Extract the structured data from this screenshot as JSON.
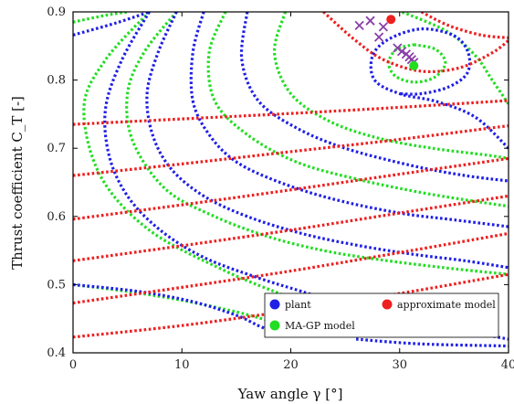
{
  "chart_data": {
    "type": "line",
    "title": "",
    "xlabel": "Yaw angle γ [°]",
    "ylabel": "Thrust coefficient C_T [-]",
    "xlim": [
      0,
      40
    ],
    "ylim": [
      0.4,
      0.9
    ],
    "xticks": [
      0,
      10,
      20,
      30,
      40
    ],
    "yticks": [
      0.4,
      0.5,
      0.6,
      0.7,
      0.8,
      0.9
    ],
    "grid": false,
    "legend_position": "bottom-right",
    "colors": {
      "plant": "#1f1fe6",
      "approximate": "#ee1f1f",
      "magp": "#22dd22",
      "iterates": "#8a3fa8"
    },
    "legend": [
      {
        "label": "plant",
        "color": "#1f1fe6"
      },
      {
        "label": "approximate model",
        "color": "#ee1f1f"
      },
      {
        "label": "MA-GP model",
        "color": "#22dd22"
      }
    ],
    "optima": {
      "approximate": {
        "x": 29.2,
        "y": 0.889
      },
      "magp": {
        "x": 31.3,
        "y": 0.821
      }
    },
    "iterates": [
      {
        "x": 26.3,
        "y": 0.88
      },
      {
        "x": 27.3,
        "y": 0.887
      },
      {
        "x": 28.5,
        "y": 0.878
      },
      {
        "x": 28.1,
        "y": 0.863
      },
      {
        "x": 29.8,
        "y": 0.847
      },
      {
        "x": 30.2,
        "y": 0.842
      },
      {
        "x": 30.6,
        "y": 0.838
      },
      {
        "x": 30.9,
        "y": 0.834
      },
      {
        "x": 31.1,
        "y": 0.83
      },
      {
        "x": 31.3,
        "y": 0.826
      }
    ],
    "series": [
      {
        "name": "plant",
        "color": "#1f1fe6",
        "lines": [
          [
            [
              0,
              0.866
            ],
            [
              4,
              0.884
            ],
            [
              7,
              0.9
            ]
          ],
          [
            [
              7,
              0.9
            ],
            [
              4.5,
              0.83
            ],
            [
              3,
              0.76
            ],
            [
              3.3,
              0.69
            ],
            [
              5,
              0.63
            ],
            [
              8,
              0.58
            ],
            [
              12,
              0.54
            ],
            [
              17,
              0.51
            ],
            [
              21,
              0.49
            ],
            [
              26,
              0.465
            ],
            [
              31,
              0.447
            ],
            [
              36,
              0.432
            ],
            [
              40,
              0.42
            ]
          ],
          [
            [
              9.5,
              0.9
            ],
            [
              7.8,
              0.84
            ],
            [
              6.8,
              0.78
            ],
            [
              7.3,
              0.72
            ],
            [
              9,
              0.67
            ],
            [
              12,
              0.63
            ],
            [
              16,
              0.6
            ],
            [
              21,
              0.575
            ],
            [
              26,
              0.558
            ],
            [
              31,
              0.545
            ],
            [
              36,
              0.535
            ],
            [
              40,
              0.525
            ]
          ],
          [
            [
              12,
              0.9
            ],
            [
              11,
              0.84
            ],
            [
              11,
              0.77
            ],
            [
              12.5,
              0.72
            ],
            [
              15,
              0.68
            ],
            [
              19,
              0.65
            ],
            [
              24,
              0.625
            ],
            [
              30,
              0.605
            ],
            [
              35,
              0.595
            ],
            [
              40,
              0.585
            ]
          ],
          [
            [
              16,
              0.9
            ],
            [
              15.5,
              0.83
            ],
            [
              17,
              0.77
            ],
            [
              20.5,
              0.73
            ],
            [
              25,
              0.7
            ],
            [
              31,
              0.675
            ],
            [
              36,
              0.66
            ],
            [
              40,
              0.652
            ]
          ],
          [
            [
              40,
              0.7
            ],
            [
              37,
              0.745
            ],
            [
              33.5,
              0.768
            ],
            [
              30,
              0.78
            ],
            [
              27.7,
              0.8
            ],
            [
              27.5,
              0.835
            ],
            [
              29,
              0.86
            ],
            [
              32,
              0.875
            ],
            [
              35,
              0.865
            ],
            [
              36.3,
              0.84
            ],
            [
              36.2,
              0.81
            ],
            [
              34.5,
              0.79
            ],
            [
              32,
              0.78
            ],
            [
              30,
              0.78
            ]
          ],
          [
            [
              0,
              0.5
            ],
            [
              6,
              0.49
            ],
            [
              11,
              0.475
            ],
            [
              15,
              0.455
            ],
            [
              17,
              0.44
            ],
            [
              18.5,
              0.43
            ]
          ],
          [
            [
              26,
              0.42
            ],
            [
              32,
              0.413
            ],
            [
              40,
              0.41
            ]
          ]
        ]
      },
      {
        "name": "approximate model",
        "color": "#ee1f1f",
        "lines": [
          [
            [
              0,
              0.735
            ],
            [
              10,
              0.743
            ],
            [
              20,
              0.751
            ],
            [
              30,
              0.76
            ],
            [
              40,
              0.77
            ]
          ],
          [
            [
              0,
              0.66
            ],
            [
              10,
              0.677
            ],
            [
              20,
              0.695
            ],
            [
              30,
              0.713
            ],
            [
              40,
              0.733
            ]
          ],
          [
            [
              0,
              0.596
            ],
            [
              10,
              0.617
            ],
            [
              20,
              0.639
            ],
            [
              30,
              0.662
            ],
            [
              40,
              0.685
            ]
          ],
          [
            [
              0,
              0.535
            ],
            [
              10,
              0.557
            ],
            [
              20,
              0.58
            ],
            [
              30,
              0.605
            ],
            [
              40,
              0.63
            ]
          ],
          [
            [
              0,
              0.473
            ],
            [
              10,
              0.496
            ],
            [
              20,
              0.52
            ],
            [
              30,
              0.547
            ],
            [
              40,
              0.575
            ]
          ],
          [
            [
              0,
              0.423
            ],
            [
              10,
              0.44
            ],
            [
              20,
              0.462
            ],
            [
              30,
              0.487
            ],
            [
              40,
              0.515
            ]
          ],
          [
            [
              23,
              0.9
            ],
            [
              25.8,
              0.86
            ],
            [
              28.5,
              0.83
            ],
            [
              32,
              0.813
            ],
            [
              35.5,
              0.818
            ],
            [
              38.5,
              0.84
            ],
            [
              40,
              0.858
            ]
          ],
          [
            [
              32,
              0.9
            ],
            [
              34.5,
              0.88
            ],
            [
              37.5,
              0.866
            ],
            [
              40,
              0.862
            ]
          ]
        ]
      },
      {
        "name": "MA-GP model",
        "color": "#22dd22",
        "lines": [
          [
            [
              0,
              0.885
            ],
            [
              3,
              0.895
            ],
            [
              5,
              0.9
            ]
          ],
          [
            [
              7,
              0.9
            ],
            [
              3,
              0.83
            ],
            [
              1,
              0.76
            ],
            [
              2.5,
              0.66
            ],
            [
              7,
              0.58
            ],
            [
              14,
              0.52
            ],
            [
              20,
              0.48
            ],
            [
              24,
              0.45
            ],
            [
              27,
              0.43
            ]
          ],
          [
            [
              9.5,
              0.9
            ],
            [
              6.5,
              0.84
            ],
            [
              5,
              0.78
            ],
            [
              5.5,
              0.71
            ],
            [
              8.5,
              0.64
            ],
            [
              13,
              0.6
            ],
            [
              18,
              0.57
            ],
            [
              23,
              0.55
            ],
            [
              28,
              0.537
            ],
            [
              34,
              0.525
            ],
            [
              40,
              0.515
            ]
          ],
          [
            [
              14,
              0.9
            ],
            [
              12.5,
              0.84
            ],
            [
              13,
              0.77
            ],
            [
              16,
              0.72
            ],
            [
              20.5,
              0.68
            ],
            [
              26,
              0.655
            ],
            [
              32,
              0.635
            ],
            [
              37,
              0.622
            ],
            [
              40,
              0.615
            ]
          ],
          [
            [
              19.5,
              0.9
            ],
            [
              18.5,
              0.84
            ],
            [
              20,
              0.78
            ],
            [
              23.5,
              0.74
            ],
            [
              28,
              0.715
            ],
            [
              33,
              0.7
            ],
            [
              38,
              0.69
            ],
            [
              40,
              0.685
            ]
          ],
          [
            [
              40,
              0.765
            ],
            [
              38.5,
              0.8
            ],
            [
              37,
              0.835
            ],
            [
              34.5,
              0.87
            ],
            [
              31,
              0.895
            ],
            [
              30,
              0.9
            ]
          ],
          [
            [
              31.3,
              0.852
            ],
            [
              33.3,
              0.845
            ],
            [
              34.2,
              0.825
            ],
            [
              33.2,
              0.804
            ],
            [
              31.3,
              0.797
            ],
            [
              29.6,
              0.806
            ],
            [
              29,
              0.825
            ],
            [
              29.7,
              0.845
            ],
            [
              31.3,
              0.852
            ]
          ],
          [
            [
              0,
              0.5
            ],
            [
              5,
              0.49
            ],
            [
              10,
              0.477
            ],
            [
              15,
              0.46
            ],
            [
              18,
              0.447
            ]
          ]
        ]
      }
    ]
  }
}
